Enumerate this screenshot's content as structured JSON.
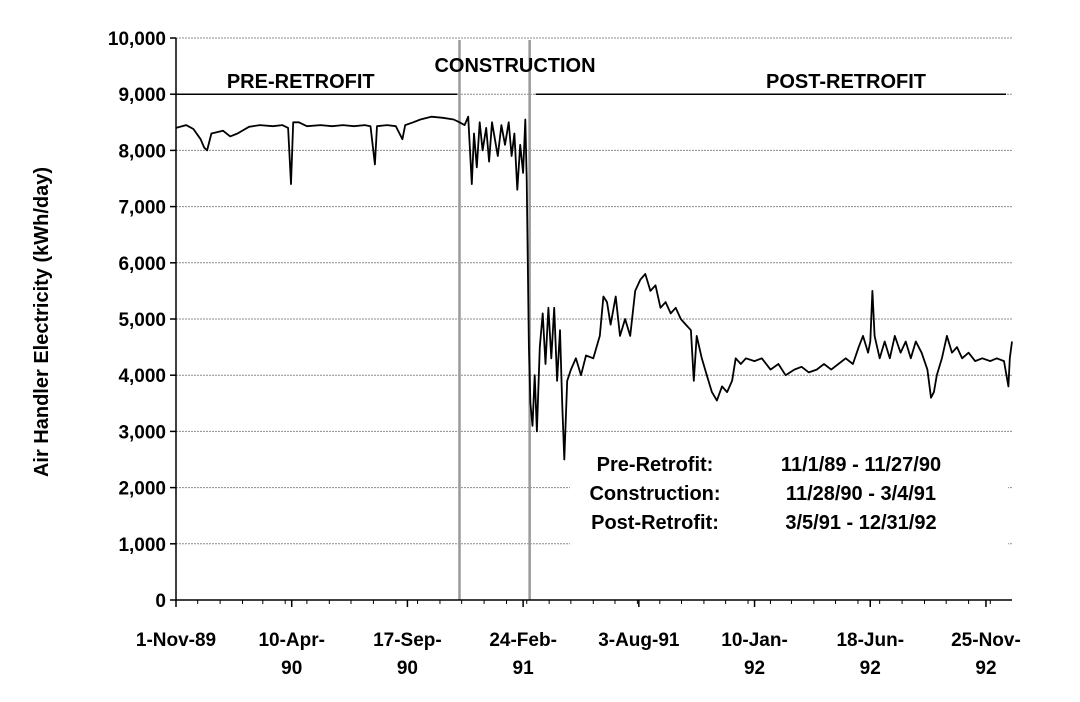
{
  "chart_data": {
    "type": "line",
    "title": "",
    "ylabel": "Air Handler Electricity (kWh/day)",
    "xlabel": "",
    "ylim": [
      0,
      10000
    ],
    "xlim": [
      "1989-11-01",
      "1992-12-31"
    ],
    "grid": "horizontal",
    "y_ticks": [
      "0",
      "1,000",
      "2,000",
      "3,000",
      "4,000",
      "5,000",
      "6,000",
      "7,000",
      "8,000",
      "9,000",
      "10,000"
    ],
    "x_ticks": [
      {
        "date": "1989-11-01",
        "lines": [
          "1-Nov-89"
        ]
      },
      {
        "date": "1990-04-10",
        "lines": [
          "10-Apr-",
          "90"
        ]
      },
      {
        "date": "1990-09-17",
        "lines": [
          "17-Sep-",
          "90"
        ]
      },
      {
        "date": "1991-02-24",
        "lines": [
          "24-Feb-",
          "91"
        ]
      },
      {
        "date": "1991-08-03",
        "lines": [
          "3-Aug-91"
        ]
      },
      {
        "date": "1992-01-10",
        "lines": [
          "10-Jan-",
          "92"
        ]
      },
      {
        "date": "1992-06-18",
        "lines": [
          "18-Jun-",
          "92"
        ]
      },
      {
        "date": "1992-11-25",
        "lines": [
          "25-Nov-",
          "92"
        ]
      }
    ],
    "periods": [
      {
        "label": "PRE-RETROFIT",
        "start": "1989-11-01",
        "end": "1990-11-27"
      },
      {
        "label": "CONSTRUCTION",
        "start": "1990-11-28",
        "end": "1991-03-04"
      },
      {
        "label": "POST-RETROFIT",
        "start": "1991-03-05",
        "end": "1992-12-31"
      }
    ],
    "dividers": [
      "1990-11-28",
      "1991-03-05"
    ],
    "info_rows": [
      {
        "label": "Pre-Retrofit:",
        "range": "11/1/89 - 11/27/90"
      },
      {
        "label": "Construction:",
        "range": "11/28/90 - 3/4/91"
      },
      {
        "label": "Post-Retrofit:",
        "range": "3/5/91 - 12/31/92"
      }
    ],
    "series": [
      {
        "color": "#000000",
        "points": [
          [
            "1989-11-01",
            8400
          ],
          [
            "1989-11-15",
            8450
          ],
          [
            "1989-11-25",
            8380
          ],
          [
            "1989-12-05",
            8200
          ],
          [
            "1989-12-10",
            8050
          ],
          [
            "1989-12-14",
            8000
          ],
          [
            "1989-12-20",
            8300
          ],
          [
            "1990-01-05",
            8350
          ],
          [
            "1990-01-15",
            8250
          ],
          [
            "1990-01-25",
            8300
          ],
          [
            "1990-02-10",
            8420
          ],
          [
            "1990-02-25",
            8450
          ],
          [
            "1990-03-15",
            8430
          ],
          [
            "1990-03-28",
            8450
          ],
          [
            "1990-04-05",
            8400
          ],
          [
            "1990-04-09",
            7400
          ],
          [
            "1990-04-12",
            8500
          ],
          [
            "1990-04-20",
            8500
          ],
          [
            "1990-05-01",
            8430
          ],
          [
            "1990-05-20",
            8450
          ],
          [
            "1990-06-05",
            8430
          ],
          [
            "1990-06-20",
            8450
          ],
          [
            "1990-07-05",
            8430
          ],
          [
            "1990-07-20",
            8450
          ],
          [
            "1990-07-28",
            8430
          ],
          [
            "1990-08-03",
            7750
          ],
          [
            "1990-08-06",
            8430
          ],
          [
            "1990-08-20",
            8450
          ],
          [
            "1990-09-01",
            8430
          ],
          [
            "1990-09-10",
            8200
          ],
          [
            "1990-09-14",
            8450
          ],
          [
            "1990-09-25",
            8500
          ],
          [
            "1990-10-05",
            8550
          ],
          [
            "1990-10-20",
            8600
          ],
          [
            "1990-11-05",
            8580
          ],
          [
            "1990-11-20",
            8550
          ],
          [
            "1990-11-28",
            8500
          ],
          [
            "1990-12-05",
            8450
          ],
          [
            "1990-12-10",
            8600
          ],
          [
            "1990-12-15",
            7400
          ],
          [
            "1990-12-18",
            8300
          ],
          [
            "1990-12-22",
            7700
          ],
          [
            "1990-12-26",
            8500
          ],
          [
            "1990-12-30",
            8000
          ],
          [
            "1991-01-04",
            8400
          ],
          [
            "1991-01-08",
            7800
          ],
          [
            "1991-01-12",
            8500
          ],
          [
            "1991-01-16",
            8200
          ],
          [
            "1991-01-20",
            7900
          ],
          [
            "1991-01-25",
            8450
          ],
          [
            "1991-01-30",
            8100
          ],
          [
            "1991-02-04",
            8500
          ],
          [
            "1991-02-08",
            7900
          ],
          [
            "1991-02-12",
            8300
          ],
          [
            "1991-02-16",
            7300
          ],
          [
            "1991-02-20",
            8100
          ],
          [
            "1991-02-24",
            7600
          ],
          [
            "1991-02-27",
            8550
          ],
          [
            "1991-03-01",
            7500
          ],
          [
            "1991-03-04",
            4500
          ],
          [
            "1991-03-06",
            3500
          ],
          [
            "1991-03-09",
            3100
          ],
          [
            "1991-03-12",
            4000
          ],
          [
            "1991-03-15",
            3000
          ],
          [
            "1991-03-19",
            4500
          ],
          [
            "1991-03-23",
            5100
          ],
          [
            "1991-03-27",
            4200
          ],
          [
            "1991-03-31",
            5200
          ],
          [
            "1991-04-04",
            4300
          ],
          [
            "1991-04-08",
            5200
          ],
          [
            "1991-04-12",
            3900
          ],
          [
            "1991-04-16",
            4800
          ],
          [
            "1991-04-19",
            3500
          ],
          [
            "1991-04-22",
            2500
          ],
          [
            "1991-04-26",
            3900
          ],
          [
            "1991-05-01",
            4100
          ],
          [
            "1991-05-08",
            4300
          ],
          [
            "1991-05-15",
            4000
          ],
          [
            "1991-05-22",
            4350
          ],
          [
            "1991-06-01",
            4300
          ],
          [
            "1991-06-10",
            4700
          ],
          [
            "1991-06-15",
            5400
          ],
          [
            "1991-06-20",
            5300
          ],
          [
            "1991-06-25",
            4900
          ],
          [
            "1991-07-02",
            5400
          ],
          [
            "1991-07-08",
            4700
          ],
          [
            "1991-07-15",
            5000
          ],
          [
            "1991-07-22",
            4700
          ],
          [
            "1991-07-29",
            5500
          ],
          [
            "1991-08-05",
            5700
          ],
          [
            "1991-08-12",
            5800
          ],
          [
            "1991-08-19",
            5500
          ],
          [
            "1991-08-26",
            5600
          ],
          [
            "1991-09-02",
            5200
          ],
          [
            "1991-09-09",
            5300
          ],
          [
            "1991-09-16",
            5100
          ],
          [
            "1991-09-23",
            5200
          ],
          [
            "1991-09-30",
            5000
          ],
          [
            "1991-10-07",
            4900
          ],
          [
            "1991-10-14",
            4800
          ],
          [
            "1991-10-18",
            3900
          ],
          [
            "1991-10-22",
            4700
          ],
          [
            "1991-10-29",
            4300
          ],
          [
            "1991-11-05",
            4000
          ],
          [
            "1991-11-12",
            3700
          ],
          [
            "1991-11-19",
            3550
          ],
          [
            "1991-11-26",
            3800
          ],
          [
            "1991-12-03",
            3700
          ],
          [
            "1991-12-10",
            3900
          ],
          [
            "1991-12-15",
            4300
          ],
          [
            "1991-12-22",
            4200
          ],
          [
            "1991-12-29",
            4300
          ],
          [
            "1992-01-10",
            4250
          ],
          [
            "1992-01-20",
            4300
          ],
          [
            "1992-02-01",
            4100
          ],
          [
            "1992-02-12",
            4200
          ],
          [
            "1992-02-22",
            4000
          ],
          [
            "1992-03-05",
            4100
          ],
          [
            "1992-03-15",
            4150
          ],
          [
            "1992-03-25",
            4050
          ],
          [
            "1992-04-05",
            4100
          ],
          [
            "1992-04-15",
            4200
          ],
          [
            "1992-04-25",
            4100
          ],
          [
            "1992-05-05",
            4200
          ],
          [
            "1992-05-15",
            4300
          ],
          [
            "1992-05-25",
            4200
          ],
          [
            "1992-06-02",
            4500
          ],
          [
            "1992-06-08",
            4700
          ],
          [
            "1992-06-15",
            4400
          ],
          [
            "1992-06-18",
            4600
          ],
          [
            "1992-06-21",
            5500
          ],
          [
            "1992-06-24",
            4700
          ],
          [
            "1992-07-01",
            4300
          ],
          [
            "1992-07-08",
            4600
          ],
          [
            "1992-07-15",
            4300
          ],
          [
            "1992-07-22",
            4700
          ],
          [
            "1992-07-30",
            4400
          ],
          [
            "1992-08-06",
            4600
          ],
          [
            "1992-08-13",
            4300
          ],
          [
            "1992-08-20",
            4600
          ],
          [
            "1992-08-28",
            4400
          ],
          [
            "1992-09-05",
            4100
          ],
          [
            "1992-09-10",
            3600
          ],
          [
            "1992-09-14",
            3700
          ],
          [
            "1992-09-18",
            4000
          ],
          [
            "1992-09-25",
            4300
          ],
          [
            "1992-10-02",
            4700
          ],
          [
            "1992-10-09",
            4400
          ],
          [
            "1992-10-16",
            4500
          ],
          [
            "1992-10-23",
            4300
          ],
          [
            "1992-11-01",
            4400
          ],
          [
            "1992-11-10",
            4250
          ],
          [
            "1992-11-20",
            4300
          ],
          [
            "1992-12-01",
            4250
          ],
          [
            "1992-12-10",
            4300
          ],
          [
            "1992-12-20",
            4250
          ],
          [
            "1992-12-26",
            3800
          ],
          [
            "1992-12-28",
            4300
          ],
          [
            "1992-12-31",
            4600
          ]
        ]
      }
    ]
  }
}
